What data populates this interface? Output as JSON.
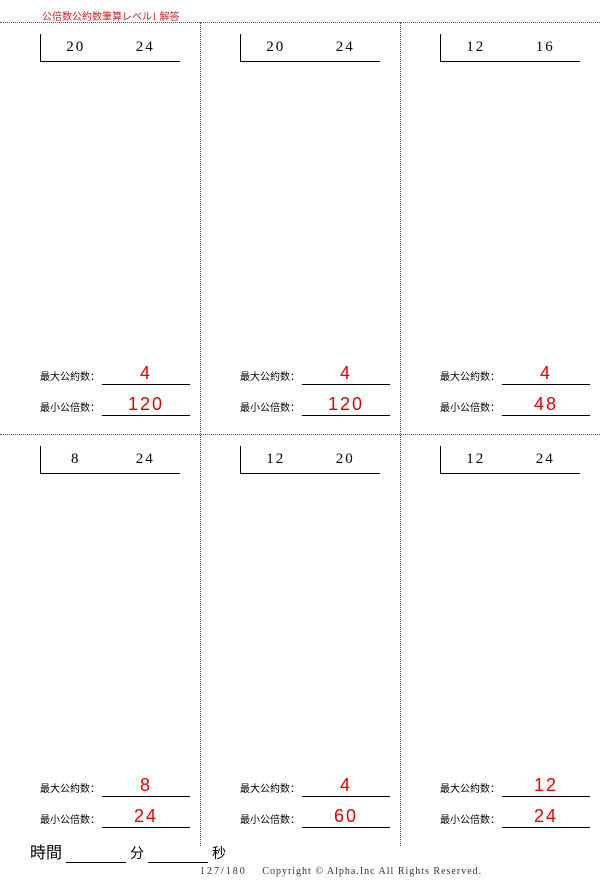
{
  "header": "公倍数公約数筆算レベル1 解答",
  "labels": {
    "gcd": "最大公約数：",
    "lcm": "最小公倍数："
  },
  "cells": [
    {
      "a": "20",
      "b": "24",
      "gcd": "4",
      "lcm": "120"
    },
    {
      "a": "20",
      "b": "24",
      "gcd": "4",
      "lcm": "120"
    },
    {
      "a": "12",
      "b": "16",
      "gcd": "4",
      "lcm": "48"
    },
    {
      "a": "8",
      "b": "24",
      "gcd": "8",
      "lcm": "24"
    },
    {
      "a": "12",
      "b": "20",
      "gcd": "4",
      "lcm": "60"
    },
    {
      "a": "12",
      "b": "24",
      "gcd": "12",
      "lcm": "24"
    }
  ],
  "footer": {
    "time_label": "時間",
    "min": "分",
    "sec": "秒",
    "page": "127/180",
    "copyright": "Copyright ©  Alpha.Inc All Rights Reserved."
  },
  "colors": {
    "answer": "#e00000",
    "header": "#c22"
  }
}
